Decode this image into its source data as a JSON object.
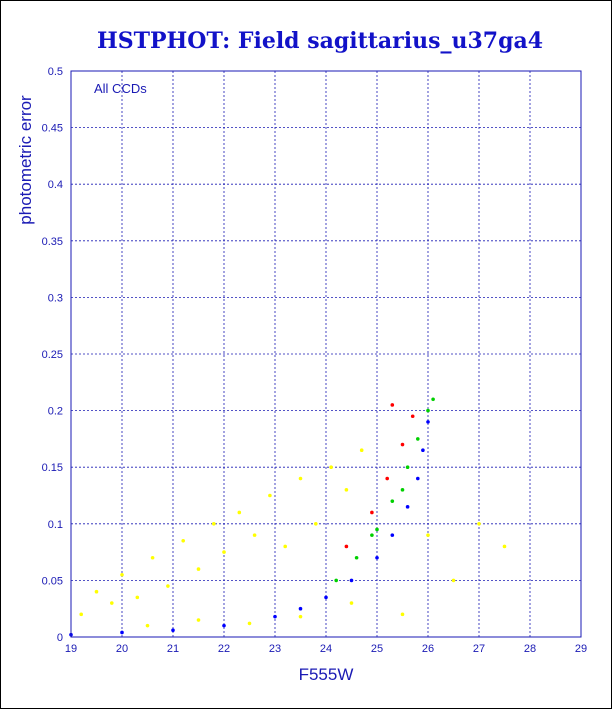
{
  "chart_data": {
    "type": "scatter",
    "title": "HSTPHOT: Field sagittarius_u37ga4",
    "xlabel": "F555W",
    "ylabel": "photometric error",
    "annotation": "All CCDs",
    "xlim": [
      19,
      29
    ],
    "ylim": [
      0,
      0.5
    ],
    "xticks": [
      "19",
      "20",
      "21",
      "22",
      "23",
      "24",
      "25",
      "26",
      "27",
      "28",
      "29"
    ],
    "yticks": [
      "0",
      "0.05",
      "0.1",
      "0.15",
      "0.2",
      "0.25",
      "0.3",
      "0.35",
      "0.4",
      "0.45",
      "0.5"
    ],
    "grid": true,
    "series": [
      {
        "color": "#ffff00",
        "points": [
          [
            19.2,
            0.02
          ],
          [
            19.5,
            0.04
          ],
          [
            19.8,
            0.03
          ],
          [
            20.0,
            0.055
          ],
          [
            20.3,
            0.035
          ],
          [
            20.6,
            0.07
          ],
          [
            20.9,
            0.045
          ],
          [
            21.2,
            0.085
          ],
          [
            21.5,
            0.06
          ],
          [
            21.8,
            0.1
          ],
          [
            22.0,
            0.075
          ],
          [
            22.3,
            0.11
          ],
          [
            22.6,
            0.09
          ],
          [
            22.9,
            0.125
          ],
          [
            23.2,
            0.08
          ],
          [
            23.5,
            0.14
          ],
          [
            23.8,
            0.1
          ],
          [
            24.1,
            0.15
          ],
          [
            24.4,
            0.13
          ],
          [
            24.7,
            0.165
          ],
          [
            20.5,
            0.01
          ],
          [
            21.5,
            0.015
          ],
          [
            22.5,
            0.012
          ],
          [
            23.5,
            0.018
          ],
          [
            24.5,
            0.03
          ],
          [
            25.5,
            0.02
          ],
          [
            26.5,
            0.05
          ],
          [
            27.0,
            0.1
          ],
          [
            27.5,
            0.08
          ],
          [
            26.0,
            0.09
          ]
        ]
      },
      {
        "color": "#0000ff",
        "points": [
          [
            19.0,
            0.002
          ],
          [
            20.0,
            0.004
          ],
          [
            21.0,
            0.006
          ],
          [
            22.0,
            0.01
          ],
          [
            23.0,
            0.018
          ],
          [
            23.5,
            0.025
          ],
          [
            24.0,
            0.035
          ],
          [
            24.5,
            0.05
          ],
          [
            25.0,
            0.07
          ],
          [
            25.3,
            0.09
          ],
          [
            25.6,
            0.115
          ],
          [
            25.8,
            0.14
          ],
          [
            25.9,
            0.165
          ],
          [
            26.0,
            0.19
          ]
        ]
      },
      {
        "color": "#00d000",
        "points": [
          [
            24.2,
            0.05
          ],
          [
            24.6,
            0.07
          ],
          [
            25.0,
            0.095
          ],
          [
            25.3,
            0.12
          ],
          [
            25.6,
            0.15
          ],
          [
            25.8,
            0.175
          ],
          [
            26.0,
            0.2
          ],
          [
            26.1,
            0.21
          ],
          [
            25.5,
            0.13
          ],
          [
            24.9,
            0.09
          ]
        ]
      },
      {
        "color": "#ff0000",
        "points": [
          [
            24.4,
            0.08
          ],
          [
            24.9,
            0.11
          ],
          [
            25.2,
            0.14
          ],
          [
            25.5,
            0.17
          ],
          [
            25.3,
            0.205
          ],
          [
            25.7,
            0.195
          ]
        ]
      }
    ]
  }
}
